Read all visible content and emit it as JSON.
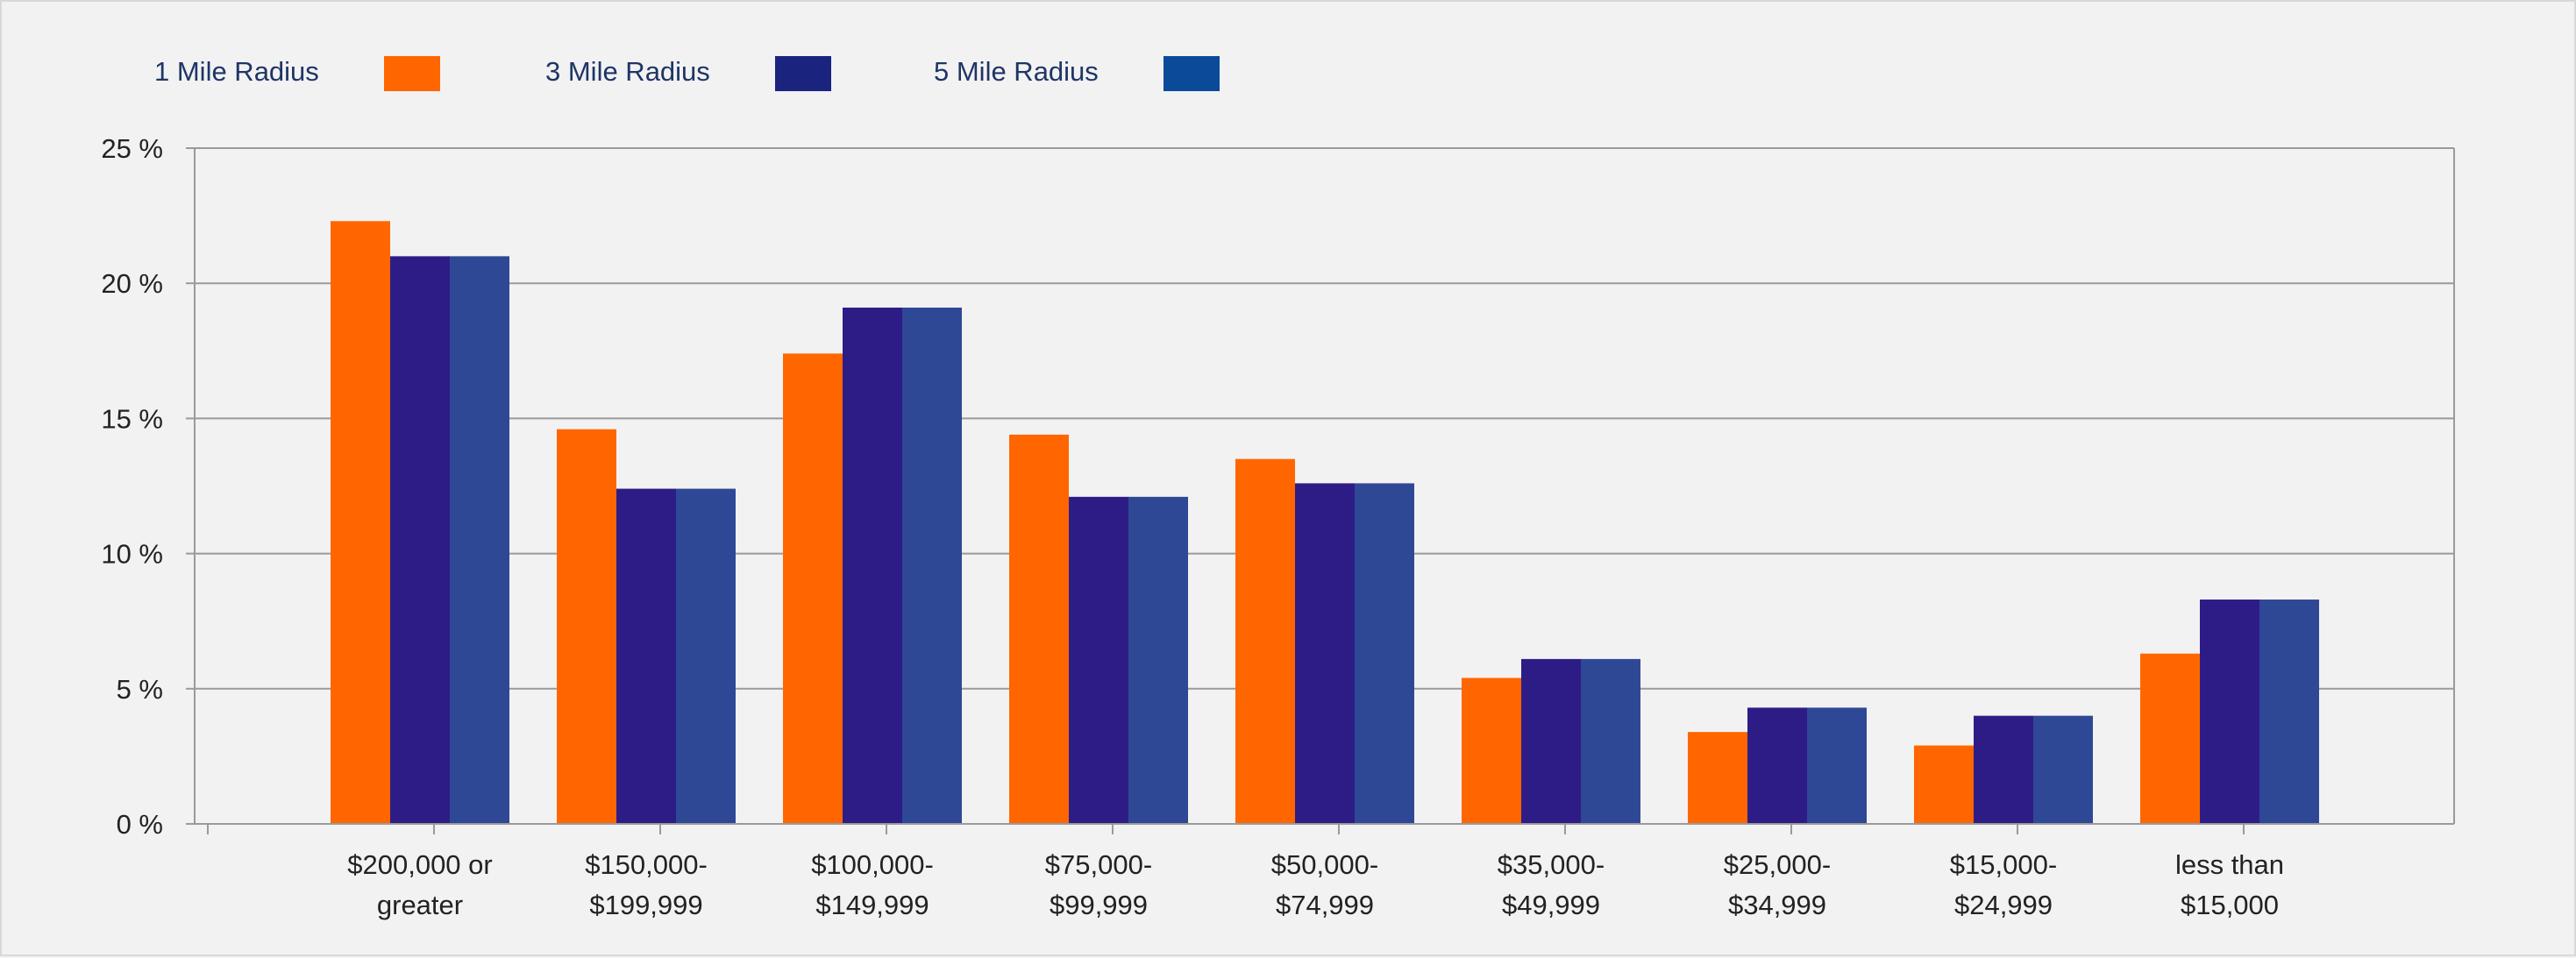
{
  "colors": {
    "background": "#f2f2f2",
    "gridline": "#9a9a9a",
    "axis": "#9a9a9a",
    "tick_text": "#222222",
    "legend_text": "#1f3566"
  },
  "chart_data": {
    "type": "bar",
    "title": "",
    "xlabel": "",
    "ylabel": "",
    "y_unit_suffix": " %",
    "ylim": [
      0,
      25
    ],
    "y_ticks": [
      0,
      5,
      10,
      15,
      20,
      25
    ],
    "y_tick_labels": [
      "0 %",
      "5 %",
      "10 %",
      "15 %",
      "20 %",
      "25 %"
    ],
    "grid": true,
    "legend_position": "top-left",
    "categories": [
      [
        "$200,000 or",
        "greater"
      ],
      [
        "$150,000-",
        "$199,999"
      ],
      [
        "$100,000-",
        "$149,999"
      ],
      [
        "$75,000-",
        "$99,999"
      ],
      [
        "$50,000-",
        "$74,999"
      ],
      [
        "$35,000-",
        "$49,999"
      ],
      [
        "$25,000-",
        "$34,999"
      ],
      [
        "$15,000-",
        "$24,999"
      ],
      [
        "less than",
        "$15,000"
      ]
    ],
    "series": [
      {
        "name": "1 Mile Radius",
        "color": "#ff6600",
        "legend_color": "#ff6600",
        "values": [
          22.3,
          14.6,
          17.4,
          14.4,
          13.5,
          5.4,
          3.4,
          2.9,
          6.3
        ]
      },
      {
        "name": "3 Mile Radius",
        "color": "#2e1c86",
        "legend_color": "#1a237e",
        "values": [
          21.0,
          12.4,
          19.1,
          12.1,
          12.6,
          6.1,
          4.3,
          4.0,
          8.3
        ]
      },
      {
        "name": "5 Mile Radius",
        "color": "#2f4896",
        "legend_color": "#0b4a99",
        "values": [
          21.0,
          12.4,
          19.1,
          12.1,
          12.6,
          6.1,
          4.3,
          4.0,
          8.3
        ]
      }
    ]
  }
}
